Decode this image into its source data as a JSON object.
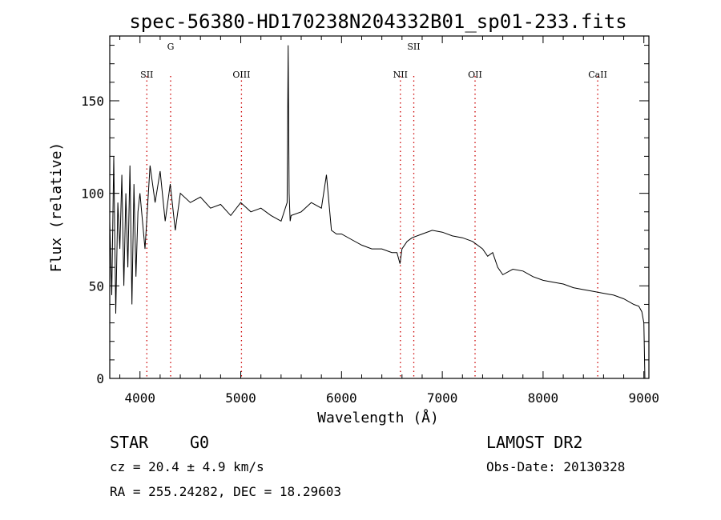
{
  "chart_data": {
    "type": "line",
    "title": "spec-56380-HD170238N204332B01_sp01-233.fits",
    "xlabel": "Wavelength (Å)",
    "ylabel": "Flux (relative)",
    "xlim": [
      3700,
      9050
    ],
    "ylim": [
      0,
      185
    ],
    "x_ticks": [
      4000,
      5000,
      6000,
      7000,
      8000,
      9000
    ],
    "x_tick_labels": [
      "4000",
      "5000",
      "6000",
      "7000",
      "8000",
      "9000"
    ],
    "y_ticks": [
      0,
      50,
      100,
      150
    ],
    "y_tick_labels": [
      "0",
      "50",
      "100",
      "150"
    ],
    "grid": false,
    "line_color": "#000000",
    "marker_color": "#cc0000",
    "spectral_lines": [
      {
        "label": "SII",
        "x": 4068,
        "label_level": "low"
      },
      {
        "label": "G",
        "x": 4304,
        "label_level": "high"
      },
      {
        "label": "OIII",
        "x": 5007,
        "label_level": "low"
      },
      {
        "label": "NII",
        "x": 6584,
        "label_level": "low"
      },
      {
        "label": "SII",
        "x": 6717,
        "label_level": "high"
      },
      {
        "label": "OII",
        "x": 7325,
        "label_level": "low"
      },
      {
        "label": "CaII",
        "x": 8542,
        "label_level": "low"
      }
    ],
    "series": [
      {
        "x": [
          3700,
          3720,
          3740,
          3760,
          3780,
          3800,
          3820,
          3840,
          3860,
          3880,
          3900,
          3920,
          3940,
          3960,
          3980,
          4000,
          4050,
          4100,
          4150,
          4200,
          4250,
          4300,
          4350,
          4400,
          4500,
          4600,
          4700,
          4800,
          4900,
          5000,
          5100,
          5200,
          5300,
          5400,
          5460,
          5470,
          5480,
          5490,
          5500,
          5600,
          5700,
          5800,
          5850,
          5900,
          5950,
          6000,
          6100,
          6200,
          6300,
          6400,
          6500,
          6550,
          6580,
          6600,
          6650,
          6700,
          6800,
          6900,
          7000,
          7100,
          7200,
          7300,
          7400,
          7450,
          7500,
          7550,
          7600,
          7700,
          7800,
          7900,
          8000,
          8100,
          8200,
          8300,
          8400,
          8500,
          8600,
          8700,
          8800,
          8900,
          8950,
          8980,
          9000,
          9010
        ],
        "y": [
          85,
          45,
          120,
          35,
          95,
          70,
          110,
          50,
          100,
          60,
          115,
          40,
          105,
          55,
          90,
          100,
          70,
          115,
          95,
          112,
          85,
          105,
          80,
          100,
          95,
          98,
          92,
          94,
          88,
          95,
          90,
          92,
          88,
          85,
          95,
          180,
          100,
          85,
          88,
          90,
          95,
          92,
          110,
          80,
          78,
          78,
          75,
          72,
          70,
          70,
          68,
          68,
          62,
          70,
          74,
          76,
          78,
          80,
          79,
          77,
          76,
          74,
          70,
          66,
          68,
          60,
          56,
          59,
          58,
          55,
          53,
          52,
          51,
          49,
          48,
          47,
          46,
          45,
          43,
          40,
          39,
          36,
          30,
          0
        ]
      }
    ]
  },
  "info": {
    "object_class": "STAR",
    "subclass": "G0",
    "survey": "LAMOST DR2",
    "cz": "cz = 20.4 ± 4.9 km/s",
    "obs_date": "Obs-Date: 20130328",
    "coords": "RA = 255.24282, DEC =  18.29603"
  }
}
